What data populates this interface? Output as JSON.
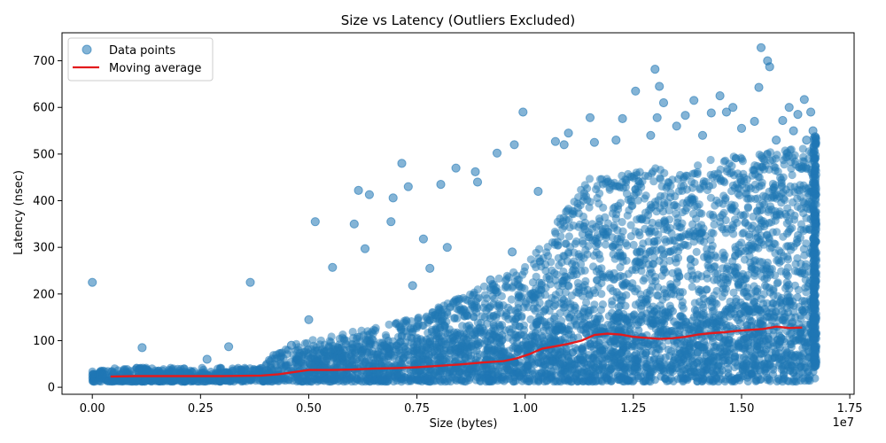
{
  "chart_data": {
    "type": "scatter",
    "title": "Size vs Latency (Outliers Excluded)",
    "xlabel": "Size (bytes)",
    "ylabel": "Latency (nsec)",
    "x_offset_label": "1e7",
    "xlim": [
      -700000,
      17600000
    ],
    "ylim": [
      -15,
      760
    ],
    "xticks": [
      0,
      2500000,
      5000000,
      7500000,
      10000000,
      12500000,
      15000000,
      17500000
    ],
    "xtick_labels": [
      "0.00",
      "0.25",
      "0.50",
      "0.75",
      "1.00",
      "1.25",
      "1.50",
      "1.75"
    ],
    "yticks": [
      0,
      100,
      200,
      300,
      400,
      500,
      600,
      700
    ],
    "ytick_labels": [
      "0",
      "100",
      "200",
      "300",
      "400",
      "500",
      "600",
      "700"
    ],
    "grid": false,
    "legend_position": "upper-left",
    "colors": {
      "points": "#1f77b4",
      "line": "#e31a1c"
    },
    "series": [
      {
        "name": "Data points",
        "kind": "scatter",
        "points": [
          [
            0,
            225
          ],
          [
            1150000,
            85
          ],
          [
            3150000,
            87
          ],
          [
            3650000,
            225
          ],
          [
            5150000,
            355
          ],
          [
            5550000,
            257
          ],
          [
            6150000,
            422
          ],
          [
            6050000,
            350
          ],
          [
            6400000,
            413
          ],
          [
            6950000,
            406
          ],
          [
            7150000,
            480
          ],
          [
            7300000,
            430
          ],
          [
            7800000,
            255
          ],
          [
            8050000,
            435
          ],
          [
            8400000,
            470
          ],
          [
            8850000,
            462
          ],
          [
            9350000,
            502
          ],
          [
            9750000,
            520
          ],
          [
            9950000,
            590
          ],
          [
            10700000,
            527
          ],
          [
            11000000,
            545
          ],
          [
            11500000,
            578
          ],
          [
            12250000,
            576
          ],
          [
            12550000,
            635
          ],
          [
            13000000,
            682
          ],
          [
            13050000,
            578
          ],
          [
            13100000,
            645
          ],
          [
            13200000,
            610
          ],
          [
            13700000,
            583
          ],
          [
            13900000,
            615
          ],
          [
            14300000,
            588
          ],
          [
            14500000,
            625
          ],
          [
            14650000,
            590
          ],
          [
            15000000,
            555
          ],
          [
            15400000,
            643
          ],
          [
            15450000,
            728
          ],
          [
            15600000,
            700
          ],
          [
            15650000,
            687
          ],
          [
            15950000,
            572
          ],
          [
            16100000,
            600
          ],
          [
            16300000,
            585
          ],
          [
            16450000,
            617
          ],
          [
            16600000,
            590
          ],
          [
            16650000,
            550
          ],
          [
            16700000,
            537
          ],
          [
            2650000,
            60
          ],
          [
            4600000,
            90
          ],
          [
            5000000,
            145
          ],
          [
            6300000,
            297
          ],
          [
            6900000,
            355
          ],
          [
            7400000,
            218
          ],
          [
            7650000,
            318
          ],
          [
            8200000,
            300
          ],
          [
            8900000,
            440
          ],
          [
            9200000,
            230
          ],
          [
            9700000,
            290
          ],
          [
            10300000,
            420
          ],
          [
            10900000,
            520
          ],
          [
            11600000,
            525
          ],
          [
            12100000,
            530
          ],
          [
            12900000,
            540
          ],
          [
            13500000,
            560
          ],
          [
            14100000,
            540
          ],
          [
            14800000,
            600
          ],
          [
            15300000,
            570
          ],
          [
            15800000,
            530
          ],
          [
            16200000,
            550
          ],
          [
            16500000,
            530
          ]
        ]
      },
      {
        "name": "Moving average",
        "kind": "line",
        "points": [
          [
            420000,
            23
          ],
          [
            1000000,
            24
          ],
          [
            2000000,
            24
          ],
          [
            3000000,
            24
          ],
          [
            3900000,
            25
          ],
          [
            4300000,
            28
          ],
          [
            4700000,
            33
          ],
          [
            5000000,
            37
          ],
          [
            5500000,
            37
          ],
          [
            6000000,
            38
          ],
          [
            6500000,
            40
          ],
          [
            7000000,
            41
          ],
          [
            7500000,
            43
          ],
          [
            8000000,
            46
          ],
          [
            8500000,
            49
          ],
          [
            9000000,
            53
          ],
          [
            9500000,
            56
          ],
          [
            9800000,
            62
          ],
          [
            10100000,
            71
          ],
          [
            10400000,
            83
          ],
          [
            10700000,
            88
          ],
          [
            11000000,
            93
          ],
          [
            11300000,
            100
          ],
          [
            11600000,
            112
          ],
          [
            11900000,
            115
          ],
          [
            12200000,
            113
          ],
          [
            12500000,
            108
          ],
          [
            12800000,
            106
          ],
          [
            13100000,
            104
          ],
          [
            13400000,
            105
          ],
          [
            13700000,
            108
          ],
          [
            14000000,
            113
          ],
          [
            14300000,
            116
          ],
          [
            14600000,
            118
          ],
          [
            14900000,
            121
          ],
          [
            15200000,
            123
          ],
          [
            15500000,
            125
          ],
          [
            15800000,
            130
          ],
          [
            16100000,
            127
          ],
          [
            16400000,
            128
          ]
        ]
      }
    ]
  }
}
